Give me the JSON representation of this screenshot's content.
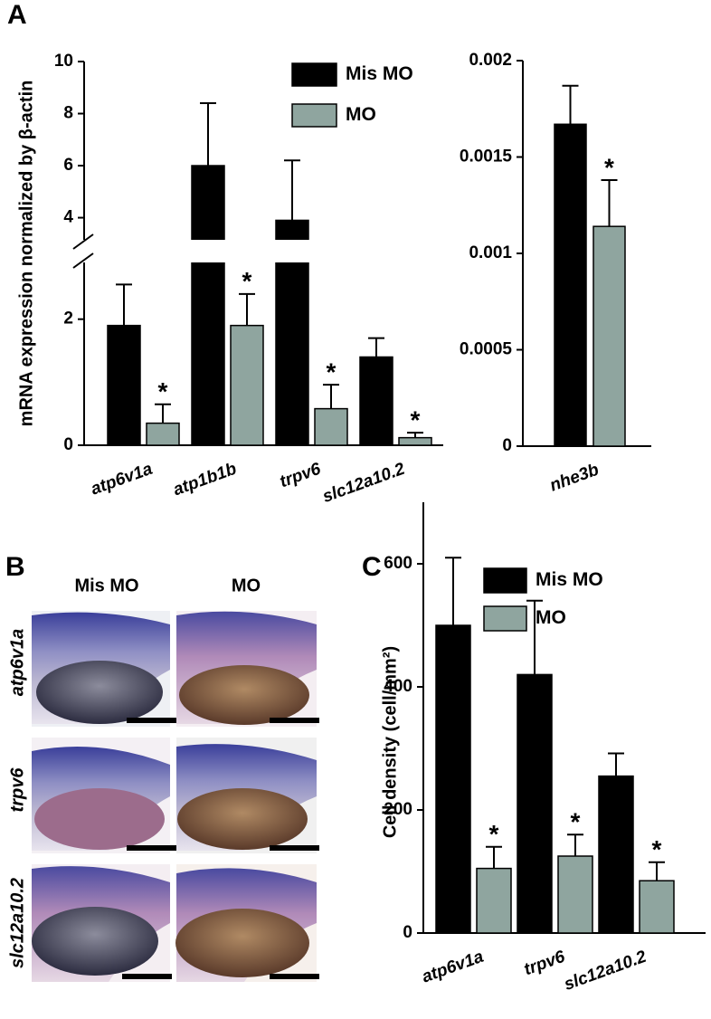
{
  "panel_labels": [
    "A",
    "B",
    "C"
  ],
  "panel_b": {
    "columns": [
      "Mis MO",
      "MO"
    ],
    "rows": [
      "atp6v1a",
      "trpv6",
      "slc12a10.2"
    ]
  },
  "chart_data": [
    {
      "type": "bar",
      "y_label": "mRNA expression normalized by β-actin",
      "categories": [
        "atp6v1a",
        "atp1b1b",
        "trpv6",
        "slc12a10.2"
      ],
      "series": [
        {
          "name": "Mis MO",
          "color": "#000000",
          "values": [
            1.9,
            6.0,
            3.9,
            1.4
          ],
          "errors": [
            0.65,
            2.4,
            2.3,
            0.3
          ]
        },
        {
          "name": "MO",
          "color": "#8fa59f",
          "values": [
            0.35,
            1.9,
            0.58,
            0.12
          ],
          "errors": [
            0.3,
            0.5,
            0.38,
            0.08
          ],
          "annotation": "*"
        }
      ],
      "ylim": [
        0,
        10
      ],
      "ybreak": [
        2.9,
        3.15
      ],
      "yticks": [
        0,
        2,
        4,
        6,
        8,
        10
      ],
      "legend": "upper right"
    },
    {
      "type": "bar",
      "categories": [
        "nhe3b"
      ],
      "series": [
        {
          "name": "Mis MO",
          "color": "#000000",
          "values": [
            0.00167
          ],
          "errors": [
            0.0002
          ]
        },
        {
          "name": "MO",
          "color": "#8fa59f",
          "values": [
            0.00114
          ],
          "errors": [
            0.00024
          ],
          "annotation": "*"
        }
      ],
      "ylim": [
        0,
        0.002
      ],
      "yticks": [
        0,
        0.0005,
        0.001,
        0.0015,
        0.002
      ]
    },
    {
      "type": "bar",
      "y_label": "Cell density (cell/mm²)",
      "categories": [
        "atp6v1a",
        "trpv6",
        "slc12a10.2"
      ],
      "series": [
        {
          "name": "Mis MO",
          "color": "#000000",
          "values": [
            500,
            420,
            255
          ],
          "errors": [
            110,
            120,
            37
          ]
        },
        {
          "name": "MO",
          "color": "#8fa59f",
          "values": [
            105,
            125,
            85
          ],
          "errors": [
            35,
            35,
            30
          ],
          "annotation": "*"
        }
      ],
      "ylim": [
        0,
        700
      ],
      "yticks": [
        0,
        200,
        400,
        600
      ],
      "legend": "upper right"
    }
  ]
}
